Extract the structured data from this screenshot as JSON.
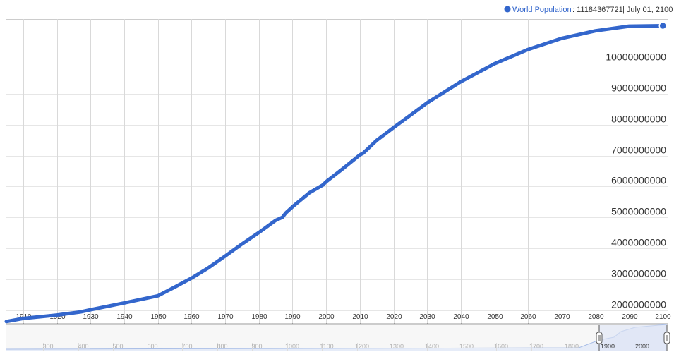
{
  "legend": {
    "series_name": "World Population",
    "value_text": ": 11184367721",
    "date_text": "| July 01, 2100",
    "marker_color": "#3366cc"
  },
  "chart_data": {
    "type": "line",
    "title": "",
    "xlabel": "",
    "ylabel": "",
    "xlim": [
      1905,
      2101
    ],
    "ylim": [
      1600000000,
      11400000000
    ],
    "grid": true,
    "legend_position": "top-right",
    "y_ticks": [
      2000000000,
      3000000000,
      4000000000,
      5000000000,
      6000000000,
      7000000000,
      8000000000,
      9000000000,
      10000000000
    ],
    "y_tick_labels": [
      "2000000000",
      "3000000000",
      "4000000000",
      "5000000000",
      "6000000000",
      "7000000000",
      "8000000000",
      "9000000000",
      "10000000000"
    ],
    "x_ticks": [
      1910,
      1920,
      1930,
      1940,
      1950,
      1960,
      1970,
      1980,
      1990,
      2000,
      2010,
      2020,
      2030,
      2040,
      2050,
      2060,
      2070,
      2080,
      2090,
      2100
    ],
    "x_tick_labels": [
      "1910",
      "1920",
      "1930",
      "1940",
      "1950",
      "1960",
      "1970",
      "1980",
      "1990",
      "2000",
      "2010",
      "2020",
      "2030",
      "2040",
      "2050",
      "2060",
      "2070",
      "2080",
      "2090",
      "2100"
    ],
    "series": [
      {
        "name": "World Population",
        "color": "#3366cc",
        "x": [
          1905,
          1910,
          1920,
          1927,
          1930,
          1940,
          1950,
          1955,
          1960,
          1965,
          1970,
          1975,
          1980,
          1985,
          1987,
          1988,
          1990,
          1995,
          1999,
          2000,
          2005,
          2010,
          2011,
          2012,
          2015,
          2020,
          2030,
          2040,
          2050,
          2060,
          2070,
          2080,
          2090,
          2100
        ],
        "y": [
          1650000000,
          1750000000,
          1860000000,
          1960000000,
          2030000000,
          2250000000,
          2480000000,
          2760000000,
          3050000000,
          3380000000,
          3760000000,
          4150000000,
          4520000000,
          4910000000,
          5010000000,
          5150000000,
          5350000000,
          5800000000,
          6050000000,
          6160000000,
          6580000000,
          7020000000,
          7080000000,
          7180000000,
          7490000000,
          7900000000,
          8700000000,
          9380000000,
          9960000000,
          10420000000,
          10780000000,
          11020000000,
          11170000000,
          11184367721
        ]
      }
    ]
  },
  "navigator": {
    "tick_labels": [
      "300",
      "400",
      "500",
      "600",
      "700",
      "800",
      "900",
      "1000",
      "1100",
      "1200",
      "1300",
      "1400",
      "1500",
      "1600",
      "1700",
      "1800"
    ],
    "selected_tick_labels": [
      "1900",
      "2000"
    ],
    "fill_color": "#e6ecf8",
    "line_color": "#a8bde6"
  }
}
